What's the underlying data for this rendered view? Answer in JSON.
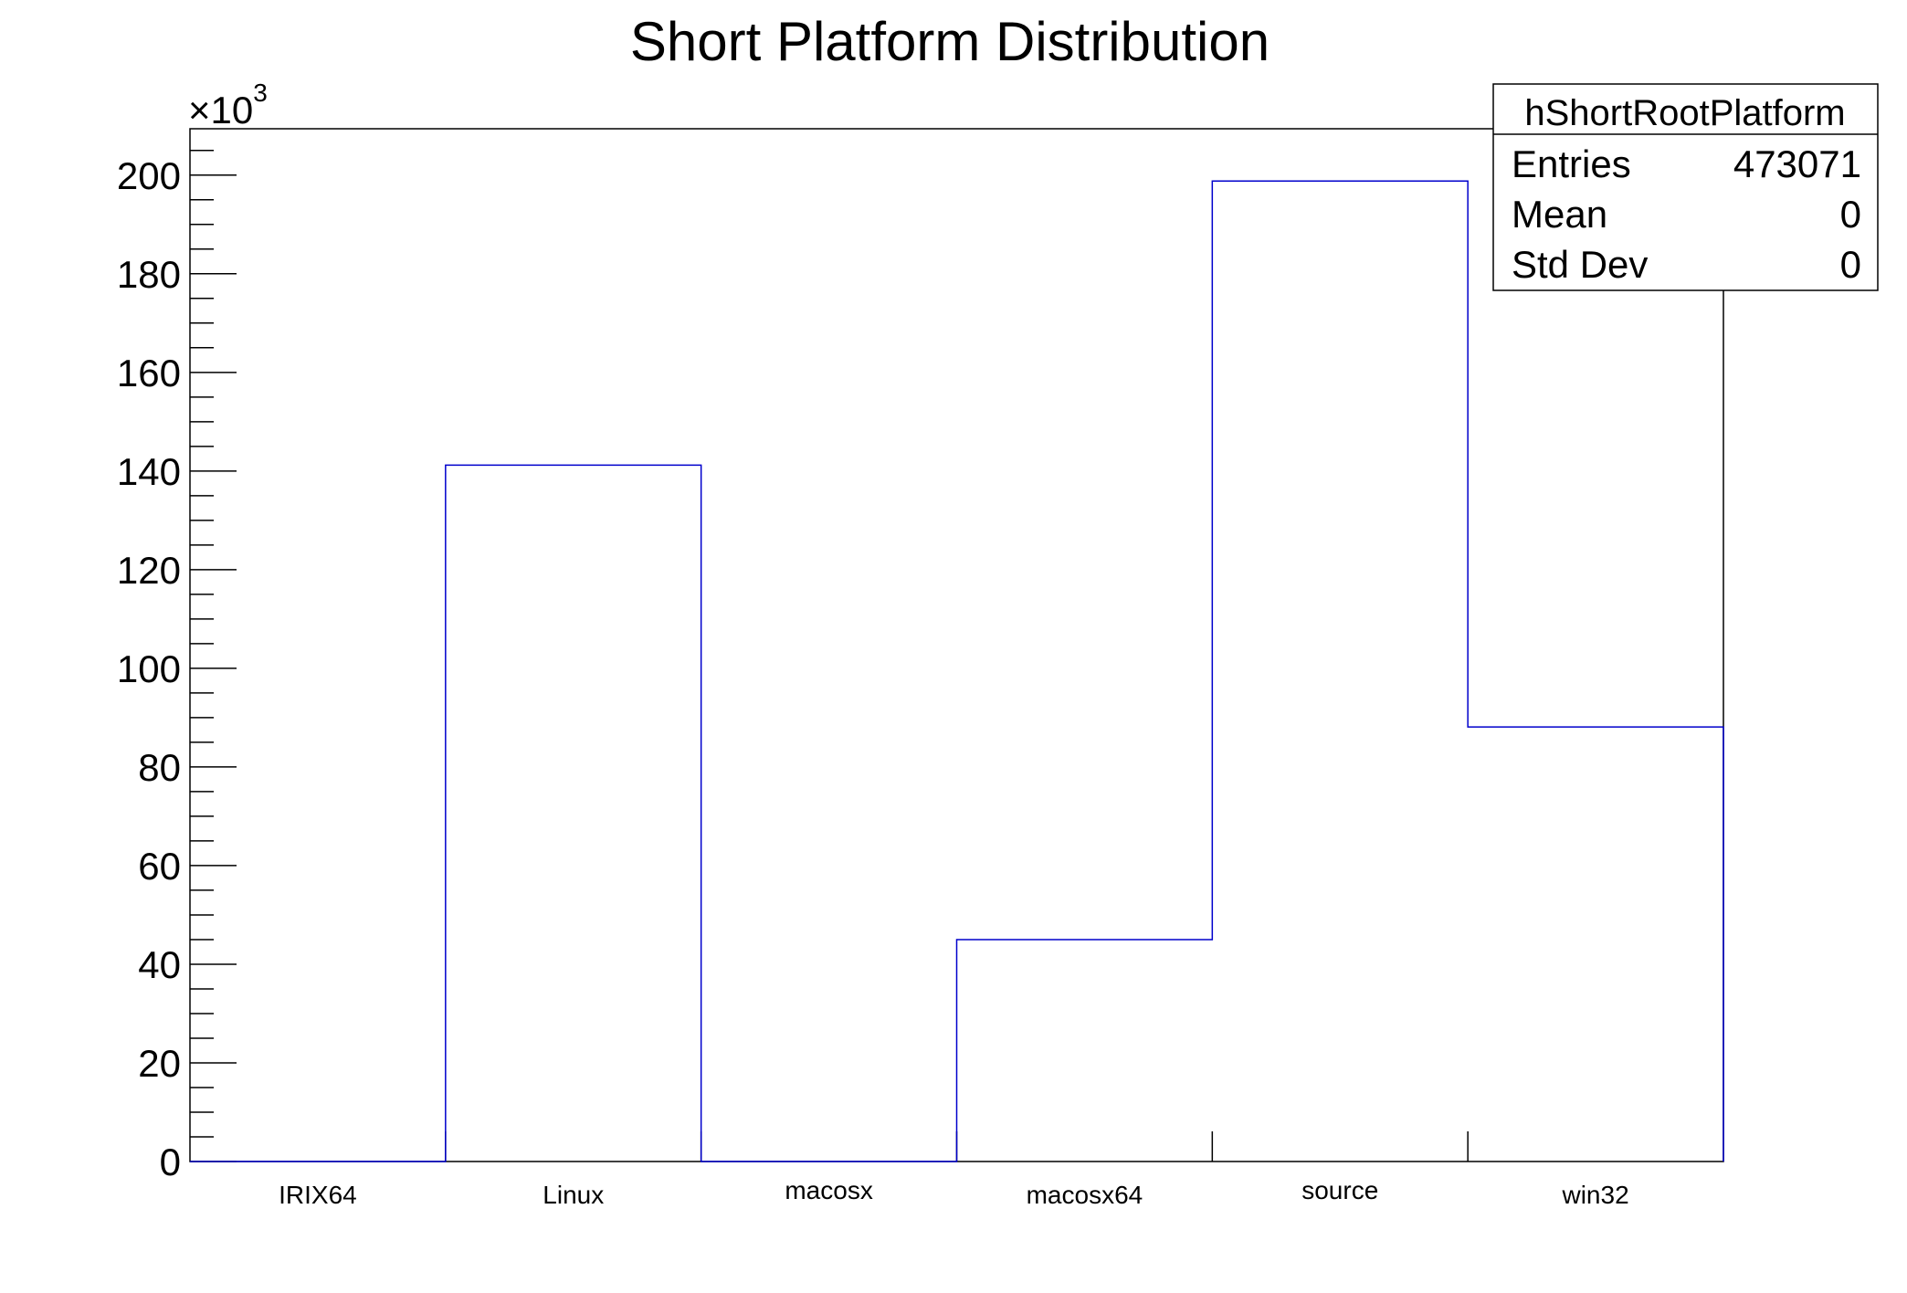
{
  "chart_data": {
    "type": "bar",
    "style": "histogram-step",
    "title": "Short Platform Distribution",
    "xlabel": "",
    "ylabel": "",
    "y_multiplier_label": "×10",
    "y_multiplier_exponent": "3",
    "categories": [
      "IRIX64",
      "Linux",
      "macosx",
      "macosx64",
      "source",
      "win32"
    ],
    "values": [
      0,
      141.2,
      0,
      45.0,
      198.8,
      88.1
    ],
    "ylim": [
      0,
      209.4
    ],
    "yticks": [
      0,
      20,
      40,
      60,
      80,
      100,
      120,
      140,
      160,
      180,
      200
    ],
    "grid": false,
    "line_color": "#0000cc",
    "axis_color": "#000000"
  },
  "stats_box": {
    "title": "hShortRootPlatform",
    "rows": [
      {
        "label": "Entries",
        "value": "473071"
      },
      {
        "label": "Mean",
        "value": "0"
      },
      {
        "label": "Std Dev",
        "value": "0"
      }
    ],
    "placement": "top-right"
  }
}
